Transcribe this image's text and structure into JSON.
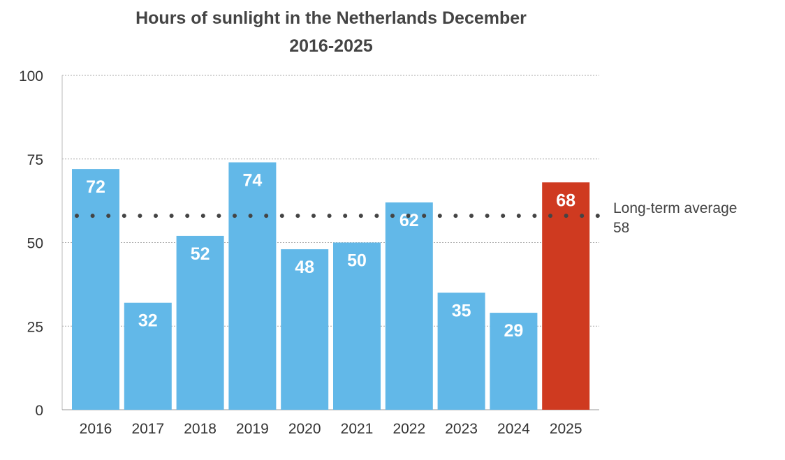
{
  "chart_data": {
    "type": "bar",
    "title": [
      "Hours of sunlight in the Netherlands December",
      "2016-2025"
    ],
    "xlabel": "",
    "ylabel": "",
    "categories": [
      "2016",
      "2017",
      "2018",
      "2019",
      "2020",
      "2021",
      "2022",
      "2023",
      "2024",
      "2025"
    ],
    "values": [
      72,
      32,
      52,
      74,
      48,
      50,
      62,
      35,
      29,
      68
    ],
    "ylim": [
      0,
      100
    ],
    "yticks": [
      0,
      25,
      50,
      75,
      100
    ],
    "grid": true,
    "colors": {
      "default": "#62b8e8",
      "highlight": "#cf3a20"
    },
    "highlight_category": "2025",
    "reference_line": {
      "value": 58,
      "label": "Long-term average",
      "value_label": "58",
      "style": "dotted"
    }
  }
}
